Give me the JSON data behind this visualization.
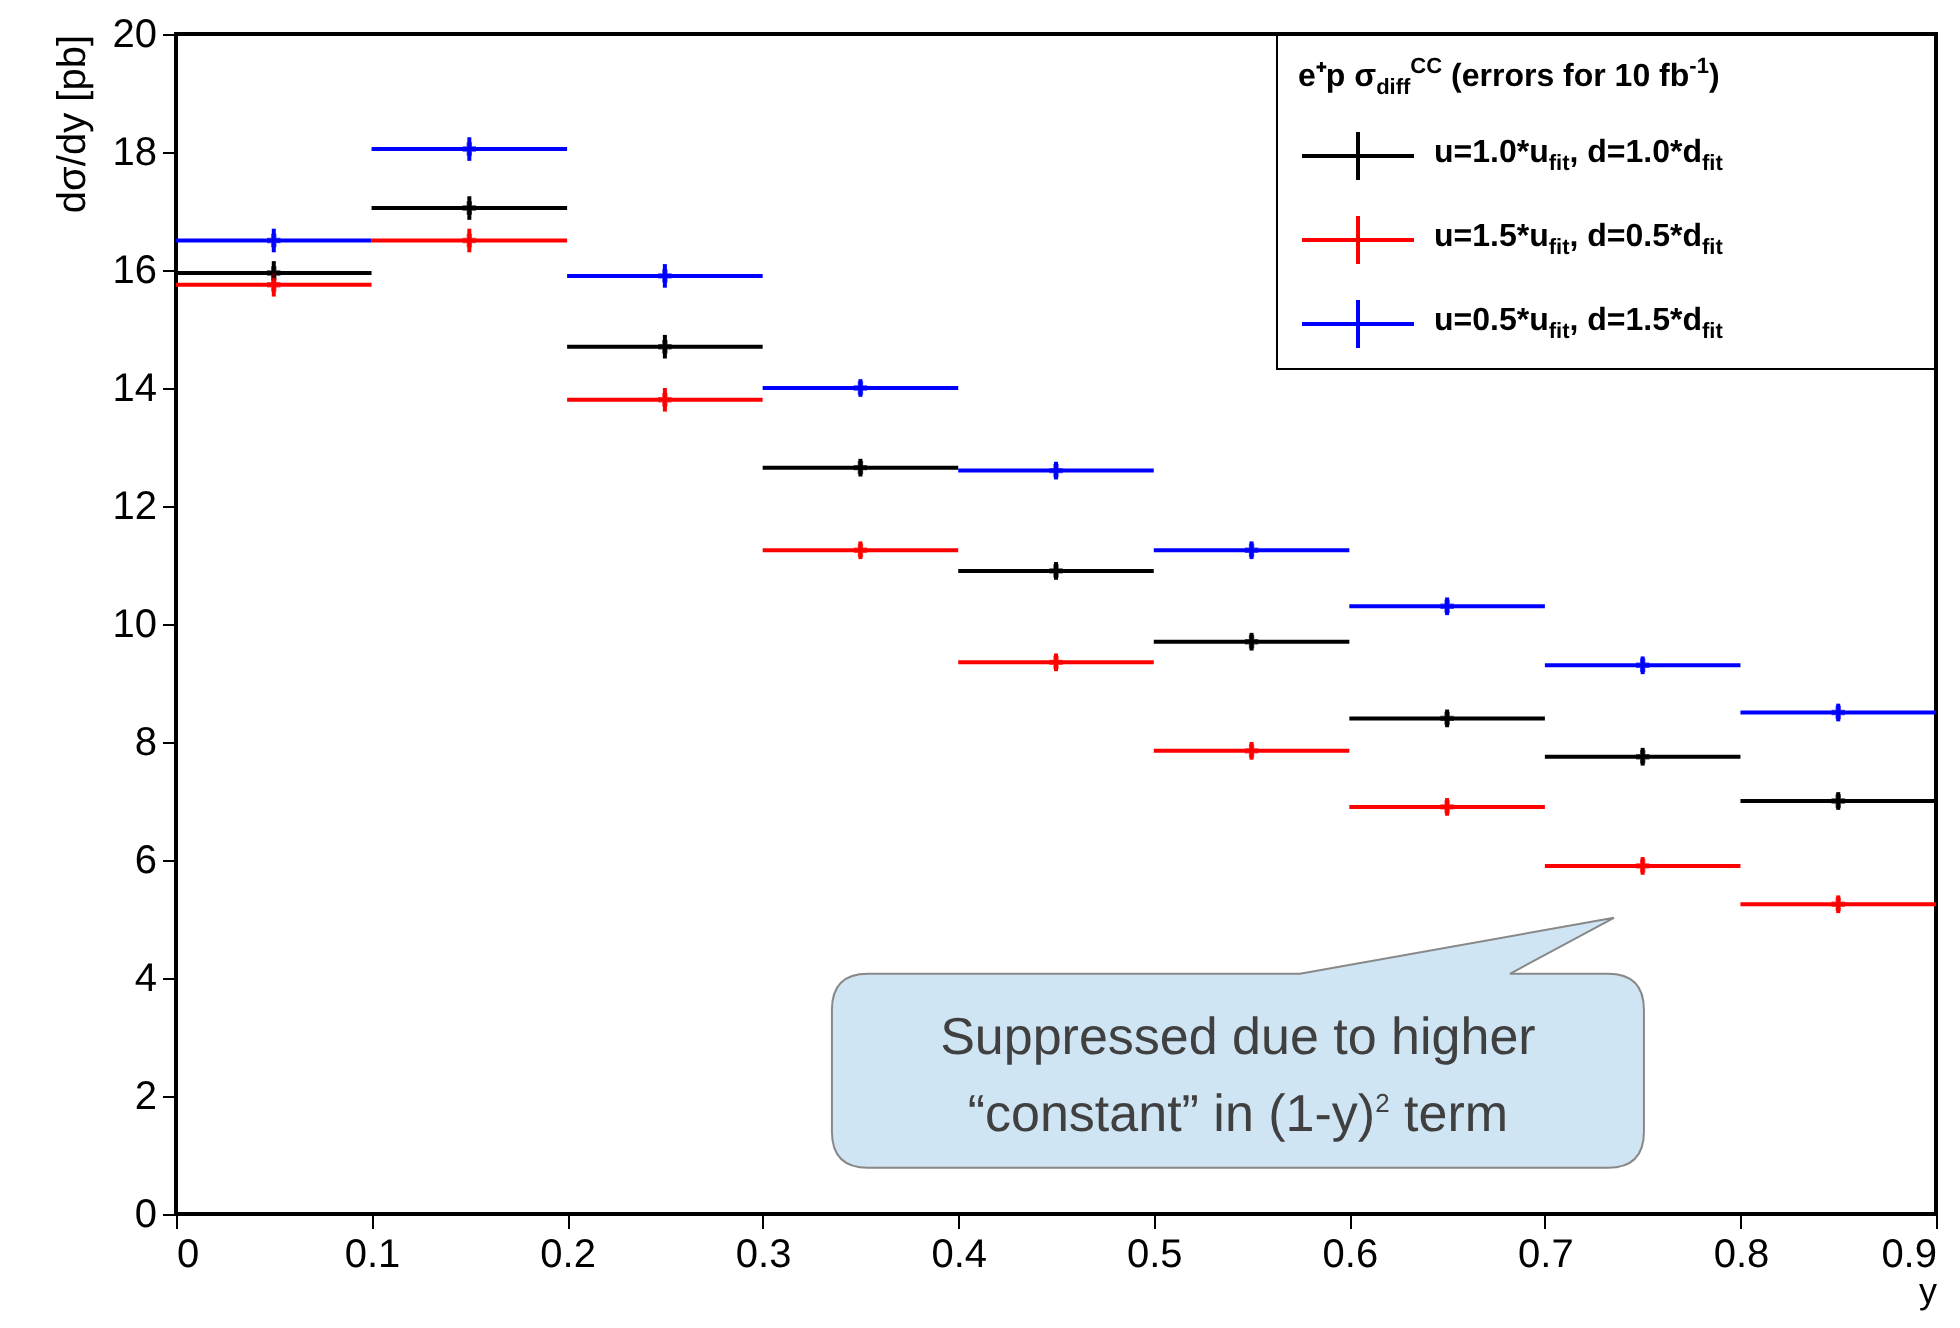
{
  "chart_data": {
    "type": "scatter",
    "xlabel": "y",
    "ylabel": "dσ/dy [pb]",
    "legend_title": "e⁺p σ$_{diff}$$^{CC}$ (errors for 10 fb$^{-1}$)",
    "x": [
      0.05,
      0.15,
      0.25,
      0.35,
      0.45,
      0.55,
      0.65,
      0.75,
      0.85
    ],
    "series": [
      {
        "name": "u=1.0*u$_{fit}$, d=1.0*d$_{fit}$",
        "color": "#000000",
        "values": [
          15.95,
          17.05,
          14.7,
          12.65,
          10.9,
          9.7,
          8.4,
          7.75,
          7.0
        ],
        "errors": [
          0.2,
          0.2,
          0.2,
          0.15,
          0.15,
          0.15,
          0.15,
          0.15,
          0.15
        ],
        "xerrors": [
          0.05,
          0.05,
          0.05,
          0.05,
          0.05,
          0.05,
          0.05,
          0.05,
          0.05
        ]
      },
      {
        "name": "u=1.5*u$_{fit}$, d=0.5*d$_{fit}$",
        "color": "#ff0000",
        "values": [
          15.75,
          16.5,
          13.8,
          11.25,
          9.35,
          7.85,
          6.9,
          5.9,
          5.25
        ],
        "errors": [
          0.2,
          0.2,
          0.2,
          0.15,
          0.15,
          0.15,
          0.15,
          0.15,
          0.15
        ],
        "xerrors": [
          0.05,
          0.05,
          0.05,
          0.05,
          0.05,
          0.05,
          0.05,
          0.05,
          0.05
        ]
      },
      {
        "name": "u=0.5*u$_{fit}$, d=1.5*d$_{fit}$",
        "color": "#0000ff",
        "values": [
          16.5,
          18.05,
          15.9,
          14.0,
          12.6,
          11.25,
          10.3,
          9.3,
          8.5
        ],
        "errors": [
          0.2,
          0.2,
          0.2,
          0.15,
          0.15,
          0.15,
          0.15,
          0.15,
          0.15
        ],
        "xerrors": [
          0.05,
          0.05,
          0.05,
          0.05,
          0.05,
          0.05,
          0.05,
          0.05,
          0.05
        ]
      }
    ],
    "xlim": [
      0,
      0.9
    ],
    "xticks": [
      0,
      0.1,
      0.2,
      0.3,
      0.4,
      0.5,
      0.6,
      0.7,
      0.8,
      0.9
    ],
    "ylim": [
      0,
      20
    ],
    "yticks": [
      0,
      2,
      4,
      6,
      8,
      10,
      12,
      14,
      16,
      18,
      20
    ],
    "grid": false,
    "legend": "top right",
    "marker": "cross",
    "annotations": [
      "Suppressed due to higher “constant” in (1-y)$^{2}$ term"
    ]
  }
}
